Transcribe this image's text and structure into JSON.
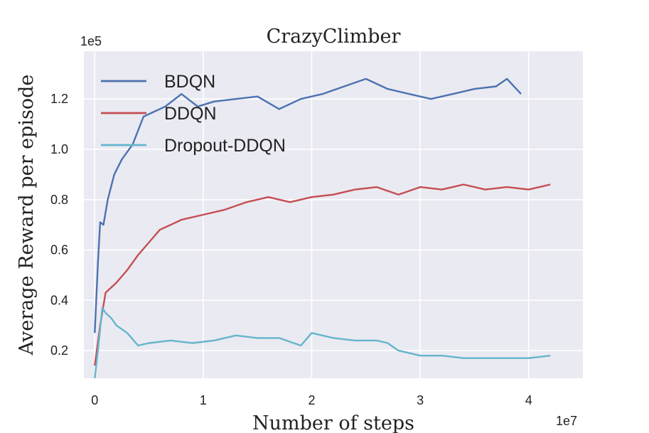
{
  "chart_data": {
    "type": "line",
    "title": "CrazyClimber",
    "xlabel": "Number of steps",
    "ylabel": "Average Reward per episode",
    "x_multiplier": "1e7",
    "y_multiplier": "1e5",
    "xlim": [
      -0.1,
      4.5
    ],
    "ylim": [
      0.09,
      1.39
    ],
    "xticks": [
      "0",
      "1",
      "2",
      "3",
      "4"
    ],
    "yticks": [
      "0.2",
      "0.4",
      "0.6",
      "0.8",
      "1.0",
      "1.2"
    ],
    "grid": true,
    "legend_position": "upper-left",
    "series": [
      {
        "name": "BDQN",
        "color": "#4c72b0",
        "x": [
          0.0,
          0.03,
          0.05,
          0.08,
          0.12,
          0.18,
          0.25,
          0.35,
          0.45,
          0.55,
          0.65,
          0.8,
          0.95,
          1.1,
          1.3,
          1.5,
          1.7,
          1.9,
          2.1,
          2.3,
          2.5,
          2.7,
          2.9,
          3.1,
          3.3,
          3.5,
          3.7,
          3.8,
          3.93
        ],
        "y": [
          0.27,
          0.55,
          0.71,
          0.7,
          0.8,
          0.9,
          0.96,
          1.02,
          1.13,
          1.15,
          1.17,
          1.22,
          1.17,
          1.19,
          1.2,
          1.21,
          1.16,
          1.2,
          1.22,
          1.25,
          1.28,
          1.24,
          1.22,
          1.2,
          1.22,
          1.24,
          1.25,
          1.28,
          1.22
        ]
      },
      {
        "name": "DDQN",
        "color": "#c44e52",
        "x": [
          0.0,
          0.05,
          0.1,
          0.2,
          0.3,
          0.4,
          0.5,
          0.6,
          0.7,
          0.8,
          1.0,
          1.2,
          1.4,
          1.6,
          1.8,
          2.0,
          2.2,
          2.4,
          2.6,
          2.8,
          3.0,
          3.2,
          3.4,
          3.6,
          3.8,
          4.0,
          4.2
        ],
        "y": [
          0.14,
          0.3,
          0.43,
          0.47,
          0.52,
          0.58,
          0.63,
          0.68,
          0.7,
          0.72,
          0.74,
          0.76,
          0.79,
          0.81,
          0.79,
          0.81,
          0.82,
          0.84,
          0.85,
          0.82,
          0.85,
          0.84,
          0.86,
          0.84,
          0.85,
          0.84,
          0.86
        ]
      },
      {
        "name": "Dropout-DDQN",
        "color": "#64b5cd",
        "x": [
          0.0,
          0.03,
          0.07,
          0.1,
          0.15,
          0.2,
          0.3,
          0.4,
          0.5,
          0.7,
          0.9,
          1.1,
          1.3,
          1.5,
          1.7,
          1.9,
          2.0,
          2.2,
          2.4,
          2.6,
          2.7,
          2.8,
          2.9,
          3.0,
          3.2,
          3.4,
          3.6,
          3.8,
          4.0,
          4.2
        ],
        "y": [
          0.09,
          0.2,
          0.37,
          0.35,
          0.33,
          0.3,
          0.27,
          0.22,
          0.23,
          0.24,
          0.23,
          0.24,
          0.26,
          0.25,
          0.25,
          0.22,
          0.27,
          0.25,
          0.24,
          0.24,
          0.23,
          0.2,
          0.19,
          0.18,
          0.18,
          0.17,
          0.17,
          0.17,
          0.17,
          0.18
        ]
      }
    ]
  }
}
